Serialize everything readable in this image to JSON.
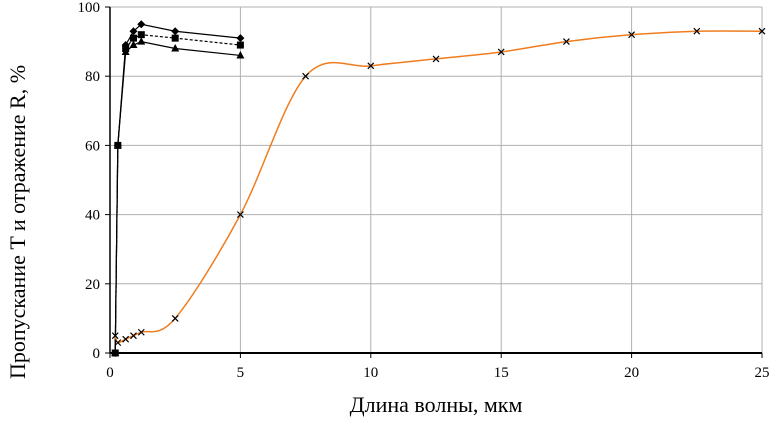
{
  "chart_data": {
    "type": "line",
    "x_label": "Длина волны, мкм",
    "y_label": "Пропускание T и отражение R, %",
    "xlim": [
      0,
      25
    ],
    "xticks": [
      0,
      5,
      10,
      15,
      20,
      25
    ],
    "ylim": [
      0,
      100
    ],
    "yticks": [
      0,
      20,
      40,
      60,
      80,
      100
    ],
    "grid": true,
    "series": [
      {
        "color": "#000000",
        "marker": "diamond",
        "dash": false,
        "smooth": false,
        "x": [
          0.2,
          0.3,
          0.6,
          0.9,
          1.2,
          2.5,
          5
        ],
        "values": [
          0,
          60,
          89,
          93,
          95,
          93,
          91
        ]
      },
      {
        "color": "#000000",
        "marker": "square",
        "dash": true,
        "smooth": false,
        "x": [
          0.2,
          0.3,
          0.6,
          0.9,
          1.2,
          2.5,
          5
        ],
        "values": [
          0,
          60,
          88,
          91,
          92,
          91,
          89
        ]
      },
      {
        "color": "#000000",
        "marker": "triangle",
        "dash": false,
        "smooth": false,
        "x": [
          0.2,
          0.3,
          0.6,
          0.9,
          1.2,
          2.5,
          5
        ],
        "values": [
          0,
          60,
          87,
          89,
          90,
          88,
          86
        ]
      },
      {
        "color": "#f07c1e",
        "marker": "x",
        "dash": false,
        "smooth": true,
        "x": [
          0.2,
          0.3,
          0.6,
          0.9,
          1.2,
          2.5,
          5,
          7.5,
          10,
          12.5,
          15,
          17.5,
          20,
          22.5,
          25
        ],
        "values": [
          5,
          3,
          4,
          5,
          6,
          10,
          40,
          80,
          83,
          85,
          87,
          90,
          92,
          93,
          93
        ]
      }
    ]
  }
}
